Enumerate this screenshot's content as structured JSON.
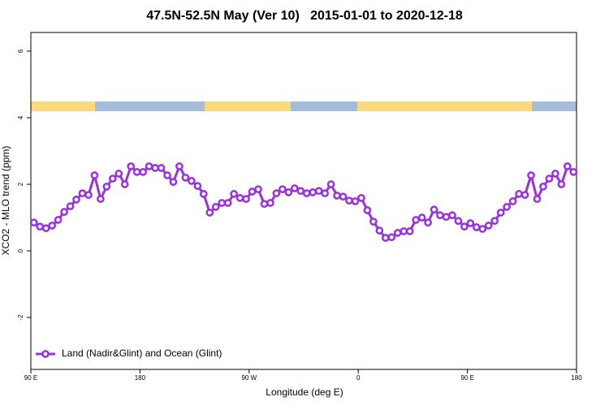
{
  "chart_data": {
    "type": "line",
    "title": "47.5N-52.5N May (Ver 10)   2015-01-01 to 2020-12-18",
    "x_label": "Longitude (deg E)",
    "y_label": "XCO2 - MLO trend (ppm)",
    "x": [
      92.5,
      97.5,
      102.5,
      107.5,
      112.5,
      117.5,
      122.5,
      127.5,
      132.5,
      137.5,
      142.5,
      147.5,
      152.5,
      157.5,
      162.5,
      167.5,
      172.5,
      177.5,
      182.5,
      187.5,
      192.5,
      197.5,
      202.5,
      207.5,
      212.5,
      217.5,
      222.5,
      227.5,
      232.5,
      237.5,
      242.5,
      247.5,
      252.5,
      257.5,
      262.5,
      267.5,
      272.5,
      277.5,
      282.5,
      287.5,
      292.5,
      297.5,
      302.5,
      307.5,
      312.5,
      317.5,
      322.5,
      327.5,
      332.5,
      337.5,
      342.5,
      347.5,
      352.5,
      357.5,
      362.5,
      367.5,
      372.5,
      377.5,
      382.5,
      387.5,
      392.5,
      397.5,
      402.5,
      407.5,
      412.5,
      417.5,
      422.5,
      427.5,
      432.5,
      437.5,
      442.5,
      447.5,
      452.5,
      457.5,
      462.5,
      467.5,
      472.5,
      477.5,
      482.5,
      487.5,
      492.5,
      497.5,
      502.5,
      507.5,
      512.5,
      517.5,
      522.5,
      527.5,
      532.5,
      537.5
    ],
    "series": [
      {
        "name": "Land (Nadir&Glint) and Ocean (Glint)",
        "color": "#9b30e0",
        "values": [
          0.85,
          0.73,
          0.68,
          0.76,
          0.93,
          1.17,
          1.34,
          1.54,
          1.73,
          1.68,
          2.27,
          1.56,
          1.93,
          2.17,
          2.32,
          2.0,
          2.54,
          2.37,
          2.37,
          2.54,
          2.49,
          2.49,
          2.27,
          2.07,
          2.54,
          2.2,
          2.1,
          1.95,
          1.71,
          1.15,
          1.32,
          1.44,
          1.44,
          1.71,
          1.59,
          1.56,
          1.78,
          1.85,
          1.41,
          1.44,
          1.73,
          1.85,
          1.76,
          1.88,
          1.8,
          1.73,
          1.76,
          1.8,
          1.73,
          2.0,
          1.66,
          1.63,
          1.51,
          1.49,
          1.59,
          1.22,
          0.88,
          0.61,
          0.39,
          0.41,
          0.54,
          0.59,
          0.59,
          0.93,
          1.0,
          0.85,
          1.24,
          1.07,
          1.02,
          1.07,
          0.9,
          0.73,
          0.83,
          0.71,
          0.66,
          0.76,
          0.9,
          1.15,
          1.32,
          1.49,
          1.71,
          1.68,
          2.27,
          1.56,
          1.93,
          2.17,
          2.32,
          2.0,
          2.54,
          2.37
        ]
      }
    ],
    "xlim": [
      90,
      540
    ],
    "xticks": [
      {
        "value": 90,
        "label": "90 E"
      },
      {
        "value": 180,
        "label": "180"
      },
      {
        "value": 270,
        "label": "90 W"
      },
      {
        "value": 360,
        "label": "0"
      },
      {
        "value": 450,
        "label": "90 E"
      },
      {
        "value": 540,
        "label": "180"
      }
    ],
    "ylim": [
      -3.56,
      6.56
    ],
    "yticks": [
      -2,
      0,
      2,
      4,
      6
    ],
    "legend": "bottom-left"
  }
}
